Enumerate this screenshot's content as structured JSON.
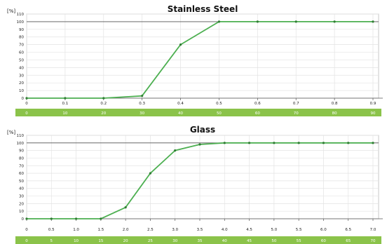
{
  "chart_data": [
    {
      "type": "line",
      "title": "Stainless Steel",
      "ylabel": "[%]",
      "ylim": [
        0,
        110
      ],
      "yticks": [
        "0",
        "10",
        "20",
        "30",
        "40",
        "50",
        "60",
        "70",
        "80",
        "90",
        "100",
        "110"
      ],
      "xlim": [
        0,
        1.0
      ],
      "xticks": [
        "0",
        "0.1",
        "0.2",
        "0.3",
        "0.4",
        "0.5",
        "0.6",
        "0.7",
        "0.8",
        "0.9"
      ],
      "band_ticks": [
        "0",
        "10",
        "20",
        "30",
        "40",
        "50",
        "60",
        "70",
        "80",
        "90"
      ],
      "x": [
        0,
        0.1,
        0.2,
        0.3,
        0.4,
        0.5,
        0.6,
        0.7,
        0.8,
        0.9
      ],
      "y": [
        0,
        0,
        0,
        3,
        70,
        100,
        100,
        100,
        100,
        100
      ],
      "reference_line": 100,
      "grid": true,
      "line_color": "#4caf50",
      "band_color": "#8bc34a"
    },
    {
      "type": "line",
      "title": "Glass",
      "ylabel": "[%]",
      "ylim": [
        0,
        110
      ],
      "yticks": [
        "0",
        "10",
        "20",
        "30",
        "40",
        "50",
        "60",
        "70",
        "80",
        "90",
        "100",
        "110"
      ],
      "xlim": [
        0,
        10
      ],
      "xticks": [
        "0",
        "0.5",
        "1.0",
        "1.5",
        "2.0",
        "2.5",
        "3.0",
        "3.5",
        "4.0",
        "4.5",
        "5.0",
        "5.5",
        "6.0",
        "6.5",
        "7.0"
      ],
      "band_ticks": [
        "0",
        "5",
        "10",
        "15",
        "20",
        "25",
        "30",
        "35",
        "40",
        "45",
        "50",
        "55",
        "60",
        "65",
        "70"
      ],
      "x": [
        0,
        0.5,
        1.0,
        1.5,
        2.0,
        2.5,
        3.0,
        3.5,
        4.0,
        4.5,
        5.0,
        5.5,
        6.0,
        6.5,
        7.0
      ],
      "y": [
        0,
        0,
        0,
        0,
        15,
        60,
        90,
        98,
        100,
        100,
        100,
        100,
        100,
        100,
        100
      ],
      "reference_line": 100,
      "grid": true,
      "line_color": "#4caf50",
      "band_color": "#8bc34a"
    }
  ]
}
